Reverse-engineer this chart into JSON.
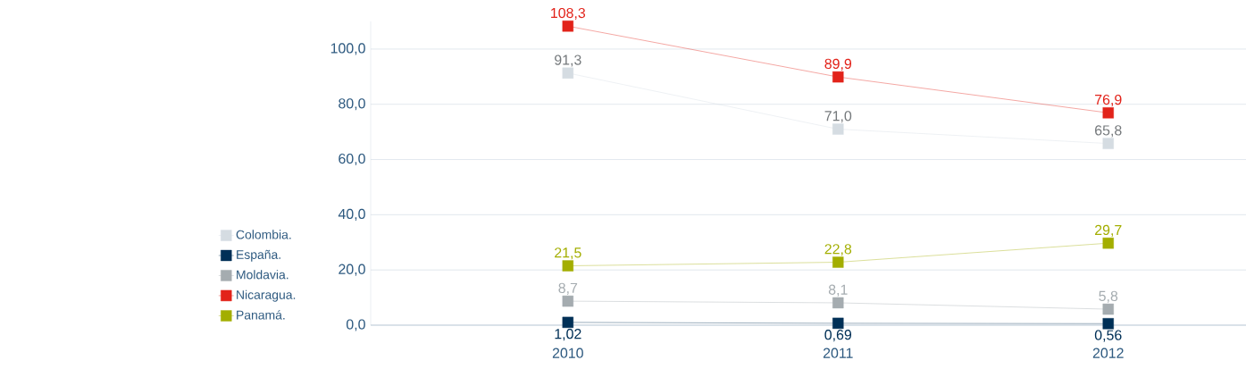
{
  "chart_data": {
    "type": "line",
    "categories": [
      "2010",
      "2011",
      "2012"
    ],
    "series": [
      {
        "name": "Colombia.",
        "color": "#d5dce2",
        "values": [
          91.3,
          71.0,
          65.8
        ],
        "value_labels": [
          "91,3",
          "71,0",
          "65,8"
        ]
      },
      {
        "name": "España.",
        "color": "#003057",
        "values": [
          1.02,
          0.69,
          0.56
        ],
        "value_labels": [
          "1,02",
          "0,69",
          "0,56"
        ]
      },
      {
        "name": "Moldavia.",
        "color": "#a5acb0",
        "values": [
          8.7,
          8.1,
          5.8
        ],
        "value_labels": [
          "8,7",
          "8,1",
          "5,8"
        ]
      },
      {
        "name": "Nicaragua.",
        "color": "#e2231a",
        "values": [
          108.3,
          89.9,
          76.9
        ],
        "value_labels": [
          "108,3",
          "89,9",
          "76,9"
        ]
      },
      {
        "name": "Panamá.",
        "color": "#a3ae00",
        "values": [
          21.5,
          22.8,
          29.7
        ],
        "value_labels": [
          "21,5",
          "22,8",
          "29,7"
        ]
      }
    ],
    "ylim": [
      0,
      110
    ],
    "yticks": [
      {
        "value": 0,
        "label": "0,0"
      },
      {
        "value": 20,
        "label": "20,0"
      },
      {
        "value": 40,
        "label": "40,0"
      },
      {
        "value": 60,
        "label": "60,0"
      },
      {
        "value": 80,
        "label": "80,0"
      },
      {
        "value": 100,
        "label": "100,0"
      }
    ],
    "grid": "y",
    "legend": "left",
    "marker": "square",
    "line_style": "solid"
  }
}
